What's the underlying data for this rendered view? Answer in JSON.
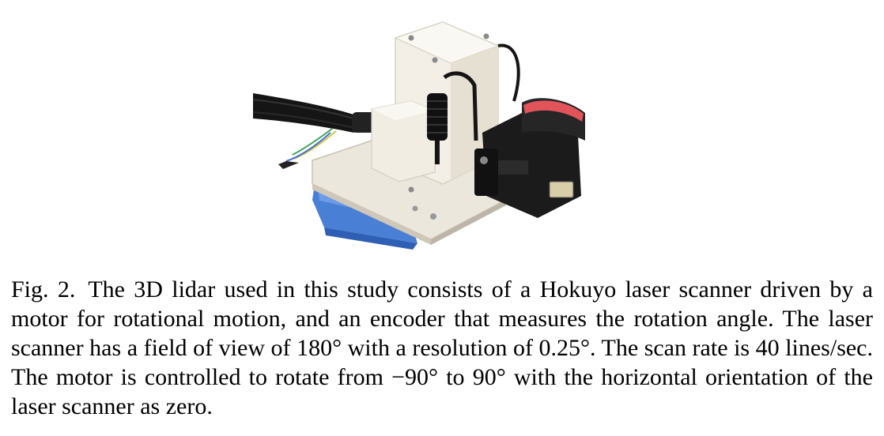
{
  "figure": {
    "label": "Fig. 2.",
    "caption": "The 3D lidar used in this study consists of a Hokuyo laser scanner driven by a motor for rotational motion, and an encoder that measures the rotation angle. The laser scanner has a field of view of 180° with a resolution of 0.25°. The scan rate is 40 lines/sec. The motor is controlled to rotate from −90° to 90° with the horizontal orientation of the laser scanner as zero."
  },
  "colors": {
    "housing": "#f3efe6",
    "base_plate": "#ece7dc",
    "battery": "#4a7fd6",
    "scanner_body": "#1b1b1b",
    "scanner_ring": "#e0545a",
    "cable": "#151515"
  }
}
